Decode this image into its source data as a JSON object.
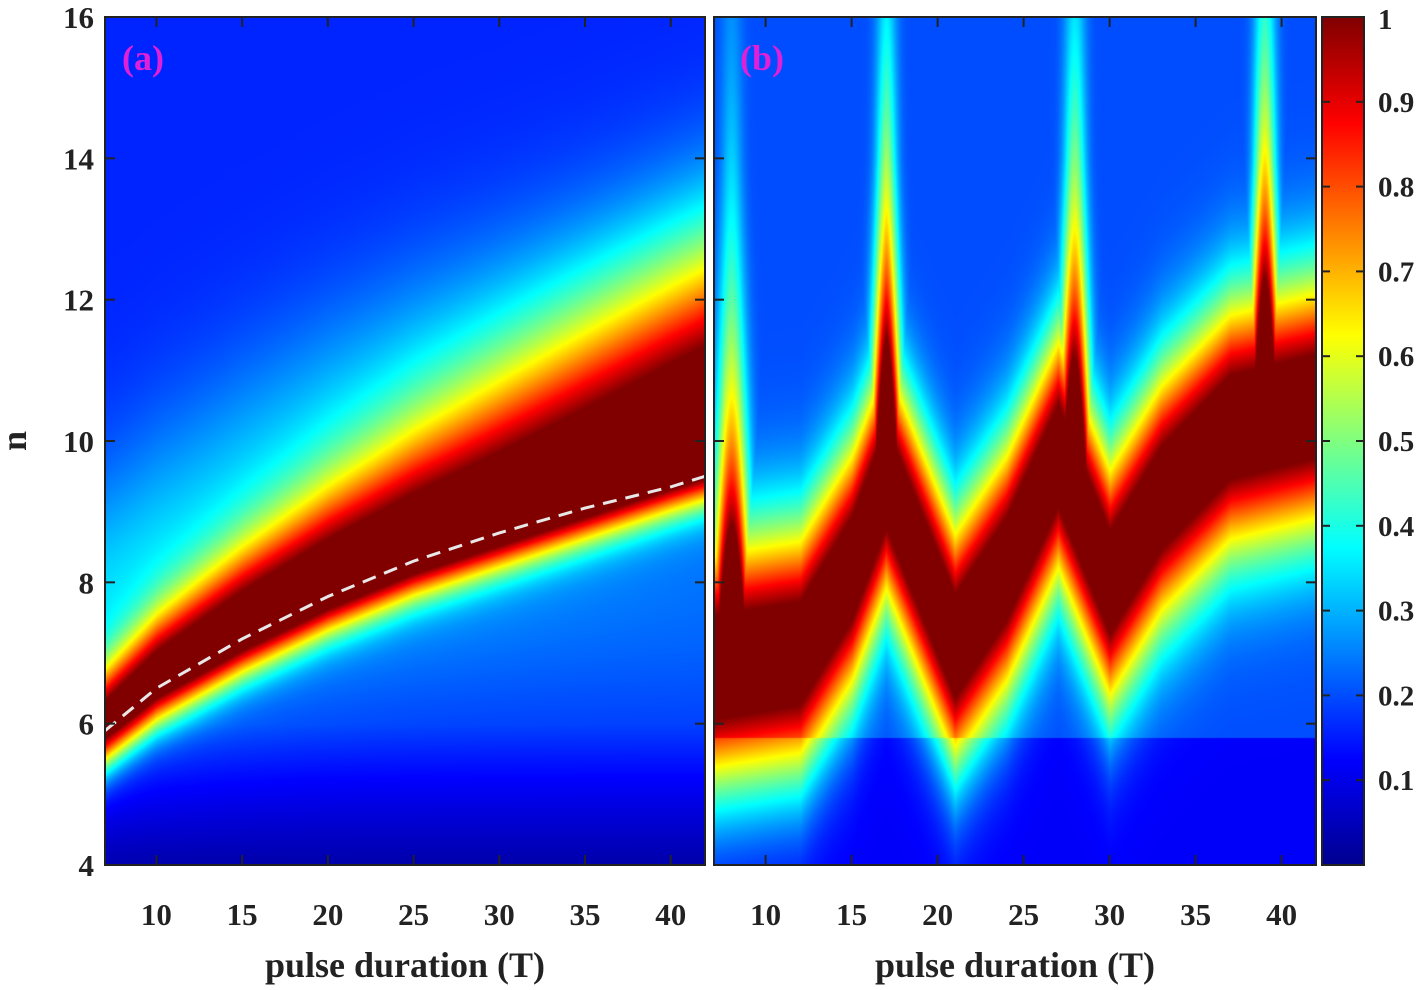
{
  "chart_data": [
    {
      "type": "heatmap",
      "panel_label": "(a)",
      "xlabel": "pulse duration (T)",
      "ylabel": "n",
      "xlim": [
        7,
        42
      ],
      "ylim": [
        4,
        16
      ],
      "xticks": [
        10,
        15,
        20,
        25,
        30,
        35,
        40
      ],
      "yticks": [
        4,
        6,
        8,
        10,
        12,
        14,
        16
      ],
      "ridge_peak_n": [
        {
          "x": 7,
          "n": 6.0
        },
        {
          "x": 10,
          "n": 6.6
        },
        {
          "x": 15,
          "n": 7.3
        },
        {
          "x": 20,
          "n": 7.9
        },
        {
          "x": 25,
          "n": 8.4
        },
        {
          "x": 30,
          "n": 8.8
        },
        {
          "x": 35,
          "n": 9.2
        },
        {
          "x": 40,
          "n": 9.6
        },
        {
          "x": 42,
          "n": 9.75
        }
      ],
      "dashed_fit": [
        {
          "x": 7,
          "n": 5.9
        },
        {
          "x": 10,
          "n": 6.5
        },
        {
          "x": 15,
          "n": 7.2
        },
        {
          "x": 20,
          "n": 7.8
        },
        {
          "x": 25,
          "n": 8.3
        },
        {
          "x": 30,
          "n": 8.7
        },
        {
          "x": 35,
          "n": 9.05
        },
        {
          "x": 40,
          "n": 9.35
        },
        {
          "x": 42,
          "n": 9.5
        }
      ]
    },
    {
      "type": "heatmap",
      "panel_label": "(b)",
      "xlabel": "pulse duration (T)",
      "xlim": [
        7,
        42
      ],
      "ylim": [
        4,
        16
      ],
      "xticks": [
        10,
        15,
        20,
        25,
        30,
        35,
        40
      ],
      "peaks_x": [
        8,
        17,
        28,
        39
      ]
    }
  ],
  "colorbar": {
    "colormap": "jet",
    "range": [
      0,
      1
    ],
    "ticks": [
      0.1,
      0.2,
      0.3,
      0.4,
      0.5,
      0.6,
      0.7,
      0.8,
      0.9,
      1
    ],
    "tick_labels": [
      "0.1",
      "0.2",
      "0.3",
      "0.4",
      "0.5",
      "0.6",
      "0.7",
      "0.8",
      "0.9",
      "1"
    ]
  },
  "colors": {
    "panel_label": "#e020d8",
    "fit_line": "#e8e8e8"
  }
}
